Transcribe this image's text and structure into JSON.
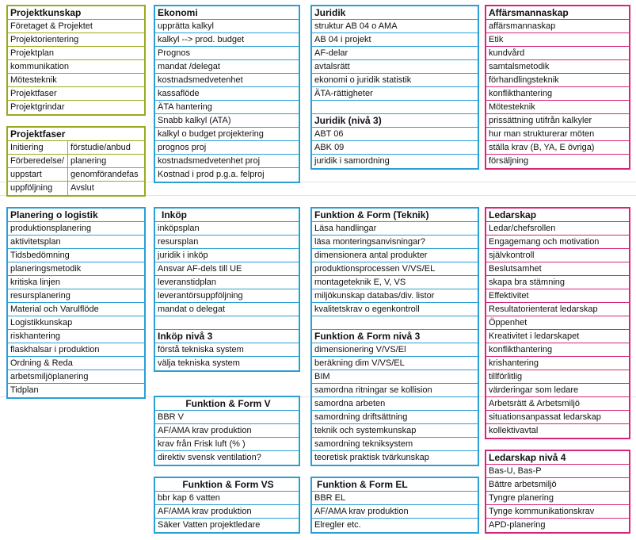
{
  "projektkunskap": {
    "title": "Projektkunskap",
    "items": [
      "Företaget & Projektet",
      "Projektorientering",
      "Projektplan",
      "kommunikation",
      "Mötesteknik",
      "Projektfaser",
      "Projektgrindar"
    ]
  },
  "projektfaser": {
    "title": "Projektfaser",
    "rows": [
      [
        "Initiering",
        "förstudie/anbud"
      ],
      [
        "Förberedelse/",
        "planering"
      ],
      [
        "uppstart",
        "genomförandefas"
      ],
      [
        "uppföljning",
        "Avslut"
      ]
    ]
  },
  "ekonomi": {
    "title": "Ekonomi",
    "items": [
      "upprätta kalkyl",
      "kalkyl --> prod. budget",
      "Prognos",
      "mandat /delegat",
      "kostnadsmedvetenhet",
      "kassaflöde",
      "ÄTA hantering",
      "Snabb kalkyl (ATA)",
      "kalkyl o budget projektering",
      "prognos proj",
      "kostnadsmedvetenhet proj",
      "Kostnad i prod p.g.a. felproj"
    ]
  },
  "juridik": {
    "title": "Juridik",
    "items": [
      "struktur AB 04 o AMA",
      "AB 04 i projekt",
      "AF-delar",
      "avtalsrätt",
      "ekonomi o juridik statistik",
      "ÄTA-rättigheter"
    ],
    "sub_title": "Juridik (nivå 3)",
    "sub_items": [
      "ABT 06",
      "ABK 09",
      "juridik i samordning"
    ]
  },
  "affarsmannaskap": {
    "title": "Affärsmannaskap",
    "items": [
      "affärsmannaskap",
      "Etik",
      "kundvård",
      "samtalsmetodik",
      "förhandlingsteknik",
      "konflikthantering",
      "Mötesteknik",
      "prissättning utifrån kalkyler",
      "hur man strukturerar möten",
      "ställa krav (B, YA, E övriga)",
      "försäljning"
    ]
  },
  "planering": {
    "title": "Planering o logistik",
    "items": [
      "produktionsplanering",
      "aktivitetsplan",
      "Tidsbedömning",
      "planeringsmetodik",
      "kritiska linjen",
      "resursplanering",
      "Material och Varulflöde",
      "Logistikkunskap",
      "riskhantering",
      "flaskhalsar i produktion",
      "Ordning & Reda",
      "arbetsmiljöplanering",
      "Tidplan"
    ]
  },
  "inkop": {
    "title": "Inköp",
    "items": [
      "inköpsplan",
      "resursplan",
      "juridik i inköp",
      "Ansvar AF-dels  till UE",
      "leveranstidplan",
      "leverantörsuppföljning",
      "mandat o delegat"
    ],
    "sub_title": "Inköp nivå 3",
    "sub_items": [
      "förstå tekniska system",
      "välja tekniska system"
    ]
  },
  "funktion_teknik": {
    "title": "Funktion & Form (Teknik)",
    "items": [
      "Läsa handlingar",
      "läsa monteringsanvisningar?",
      "dimensionera antal produkter",
      "produktionsprocessen V/VS/EL",
      "montageteknik E, V, VS",
      "miljökunskap databas/div. listor",
      "kvalitetskrav o egenkontroll"
    ],
    "sub_title": "Funktion & Form nivå 3",
    "sub_items": [
      "dimensionering V/VS/El",
      "beräkning dim V/VS/EL",
      "BIM",
      "samordna ritningar se kollision",
      "samordna arbeten",
      "samordning driftsättning",
      "teknik och systemkunskap",
      "samordning tekniksystem",
      "teoretisk praktisk tvärkunskap"
    ]
  },
  "ledarskap": {
    "title": "Ledarskap",
    "items": [
      "Ledar/chefsrollen",
      "Engagemang och motivation",
      "självkontroll",
      "Beslutsamhet",
      "skapa bra stämning",
      "Effektivitet",
      "Resultatorienterat ledarskap",
      "Öppenhet",
      "Kreativitet i ledarskapet",
      "konflikthantering",
      "krishantering",
      "tillförlitlig",
      "värderingar som ledare",
      "Arbetsrätt & Arbetsmiljö",
      "situationsanpassat ledarskap",
      "kollektivavtal"
    ]
  },
  "funktion_v": {
    "title": "Funktion & Form V",
    "items": [
      "BBR V",
      "AF/AMA krav produktion",
      " krav från Frisk luft (% )",
      "direktiv svensk ventilation?"
    ]
  },
  "ledarskap4": {
    "title": "Ledarskap nivå 4",
    "items": [
      "Bas-U, Bas-P",
      "Bättre arbetsmiljö",
      "Tyngre planering",
      "Tynge kommunikationskrav",
      "APD-planering"
    ]
  },
  "funktion_vs": {
    "title": "Funktion & Form VS",
    "items": [
      "bbr kap 6 vatten",
      "AF/AMA krav produktion",
      "Säker Vatten projektledare"
    ]
  },
  "funktion_el": {
    "title": "Funktion & Form EL",
    "items": [
      "BBR EL",
      "AF/AMA krav produktion",
      "Elregler etc."
    ]
  }
}
